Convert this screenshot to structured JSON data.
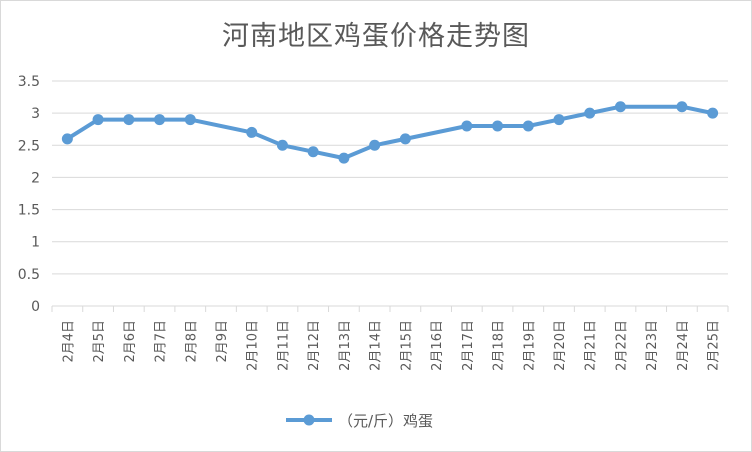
{
  "chart_data": {
    "type": "line",
    "title": "河南地区鸡蛋价格走势图",
    "xlabel": "",
    "ylabel": "",
    "ylim": [
      0,
      3.5
    ],
    "yticks": [
      0,
      0.5,
      1,
      1.5,
      2,
      2.5,
      3,
      3.5
    ],
    "yticks_text": [
      "0",
      "0.5",
      "1",
      "1.5",
      "2",
      "2.5",
      "3",
      "3.5"
    ],
    "grid": true,
    "legend": "bottom",
    "categories": [
      "2月4日",
      "2月5日",
      "2月6日",
      "2月7日",
      "2月8日",
      "2月9日",
      "2月10日",
      "2月11日",
      "2月12日",
      "2月13日",
      "2月14日",
      "2月15日",
      "2月16日",
      "2月17日",
      "2月18日",
      "2月19日",
      "2月20日",
      "2月21日",
      "2月22日",
      "2月23日",
      "2月24日",
      "2月25日"
    ],
    "series": [
      {
        "name": "（元/斤）鸡蛋",
        "color": "#5b9bd5",
        "values": [
          2.6,
          2.9,
          2.9,
          2.9,
          2.9,
          null,
          2.7,
          2.5,
          2.4,
          2.3,
          2.5,
          2.6,
          null,
          2.8,
          2.8,
          2.8,
          2.9,
          3.0,
          3.1,
          null,
          3.1,
          3.0
        ]
      }
    ]
  }
}
